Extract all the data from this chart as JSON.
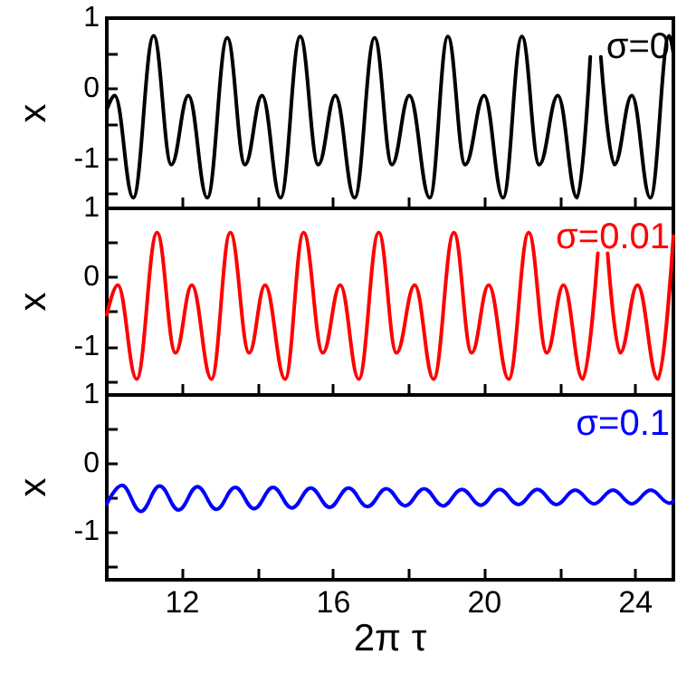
{
  "chart_data": [
    {
      "type": "line",
      "ylabel": "x",
      "annotations": [
        "σ=0"
      ],
      "xlim": [
        10,
        25
      ],
      "xticks": [
        12,
        {
          "value": 14,
          "label": null
        },
        16,
        {
          "value": 18,
          "label": null
        },
        20,
        {
          "value": 22,
          "label": null
        },
        24
      ],
      "ylim": [
        -1.7,
        1
      ],
      "yticks": [
        1,
        {
          "value": 0.5,
          "label": null
        },
        0,
        {
          "value": -0.5,
          "label": null
        },
        -1,
        {
          "value": -1.5,
          "label": null
        }
      ],
      "tick_labels": "y",
      "grid": false,
      "marker": "none",
      "series": [
        {
          "color": "#000000",
          "x": [
            10,
            10.21,
            10.7,
            11.24,
            11.71,
            12.16,
            12.66,
            13.19,
            13.66,
            14.11,
            14.6,
            15.12,
            15.6,
            16.05,
            16.56,
            17.09,
            17.55,
            18.01,
            18.55,
            19.03,
            19.49,
            19.99,
            20.49,
            20.99,
            21.45,
            21.94,
            22.45,
            22.8,
            22.94,
            23.08,
            23.44,
            23.9,
            24.39,
            24.89,
            25
          ],
          "values": [
            -0.3,
            -0.1,
            -1.55,
            0.75,
            -1.08,
            -0.1,
            -1.55,
            0.72,
            -1.08,
            -0.1,
            -1.55,
            0.74,
            -1.08,
            -0.1,
            -1.55,
            0.72,
            -1.08,
            -0.1,
            -1.55,
            0.74,
            -1.08,
            -0.1,
            -1.55,
            0.74,
            -1.08,
            -0.1,
            -1.55,
            0.45,
            null,
            0.45,
            -1.08,
            -0.1,
            -1.55,
            0.75,
            0.5
          ]
        }
      ]
    },
    {
      "type": "line",
      "ylabel": "x",
      "annotations": [
        "σ=0.01"
      ],
      "xlim": [
        10,
        25
      ],
      "xticks": [
        12,
        {
          "value": 14,
          "label": null
        },
        16,
        {
          "value": 18,
          "label": null
        },
        20,
        {
          "value": 22,
          "label": null
        },
        24
      ],
      "ylim": [
        -1.7,
        1
      ],
      "yticks": [
        1,
        {
          "value": 0.5,
          "label": null
        },
        0,
        {
          "value": -0.5,
          "label": null
        },
        -1,
        {
          "value": -1.5,
          "label": null
        }
      ],
      "tick_labels": "y",
      "grid": false,
      "marker": "none",
      "series": [
        {
          "color": "#ff0000",
          "x": [
            10,
            10.29,
            10.79,
            11.33,
            11.82,
            12.25,
            12.77,
            13.27,
            13.77,
            14.19,
            14.72,
            15.21,
            15.72,
            16.18,
            16.67,
            17.2,
            17.67,
            18.15,
            18.65,
            19.19,
            19.66,
            20.11,
            20.64,
            21.17,
            21.65,
            22.09,
            22.6,
            23,
            23.13,
            23.26,
            23.59,
            24.05,
            24.59,
            25
          ],
          "values": [
            -0.54,
            -0.11,
            -1.47,
            0.65,
            -1.09,
            -0.11,
            -1.47,
            0.65,
            -1.09,
            -0.11,
            -1.47,
            0.65,
            -1.09,
            -0.11,
            -1.47,
            0.65,
            -1.09,
            -0.11,
            -1.47,
            0.65,
            -1.09,
            -0.11,
            -1.47,
            0.65,
            -1.09,
            -0.11,
            -1.47,
            0.35,
            null,
            0.35,
            -1.09,
            -0.11,
            -1.47,
            0.6
          ]
        }
      ]
    },
    {
      "type": "line",
      "ylabel": "x",
      "xlabel": "2π τ",
      "annotations": [
        "σ=0.1"
      ],
      "xlim": [
        10,
        25
      ],
      "xticks": [
        12,
        {
          "value": 14,
          "label": null
        },
        16,
        {
          "value": 18,
          "label": null
        },
        20,
        {
          "value": 22,
          "label": null
        },
        24
      ],
      "ylim": [
        -1.7,
        1
      ],
      "yticks": [
        1,
        {
          "value": 0.5,
          "label": null
        },
        0,
        {
          "value": -0.5,
          "label": null
        },
        -1,
        {
          "value": -1.5,
          "label": null
        }
      ],
      "grid": false,
      "marker": "none",
      "series": [
        {
          "color": "#0000ff",
          "x": [
            10,
            10.4,
            10.9,
            11.4,
            11.9,
            12.4,
            12.9,
            13.4,
            13.9,
            14.4,
            14.9,
            15.4,
            15.9,
            16.4,
            16.9,
            17.4,
            17.9,
            18.4,
            18.9,
            19.4,
            19.9,
            20.4,
            20.9,
            21.4,
            21.9,
            22.4,
            22.9,
            23.4,
            23.9,
            24.4,
            24.9,
            25
          ],
          "values": [
            -0.59,
            -0.32,
            -0.7,
            -0.33,
            -0.68,
            -0.34,
            -0.67,
            -0.35,
            -0.66,
            -0.35,
            -0.65,
            -0.36,
            -0.64,
            -0.36,
            -0.63,
            -0.37,
            -0.62,
            -0.37,
            -0.62,
            -0.38,
            -0.61,
            -0.38,
            -0.6,
            -0.38,
            -0.6,
            -0.39,
            -0.59,
            -0.39,
            -0.59,
            -0.39,
            -0.58,
            -0.55
          ]
        }
      ]
    }
  ]
}
